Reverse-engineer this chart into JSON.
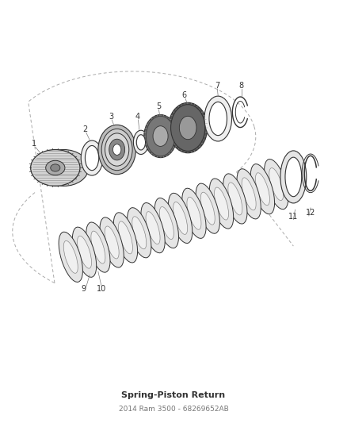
{
  "bg_color": "#ffffff",
  "line_color": "#444444",
  "dark_color": "#333333",
  "medium_gray": "#777777",
  "light_gray": "#bbbbbb",
  "fill_gray": "#d8d8d8",
  "fill_light": "#eeeeee",
  "fill_dark": "#888888",
  "title": "Spring-Piston Return",
  "subtitle": "2014 Ram 3500 - 68269652AB",
  "fig_width": 4.38,
  "fig_height": 5.33,
  "dpi": 100
}
